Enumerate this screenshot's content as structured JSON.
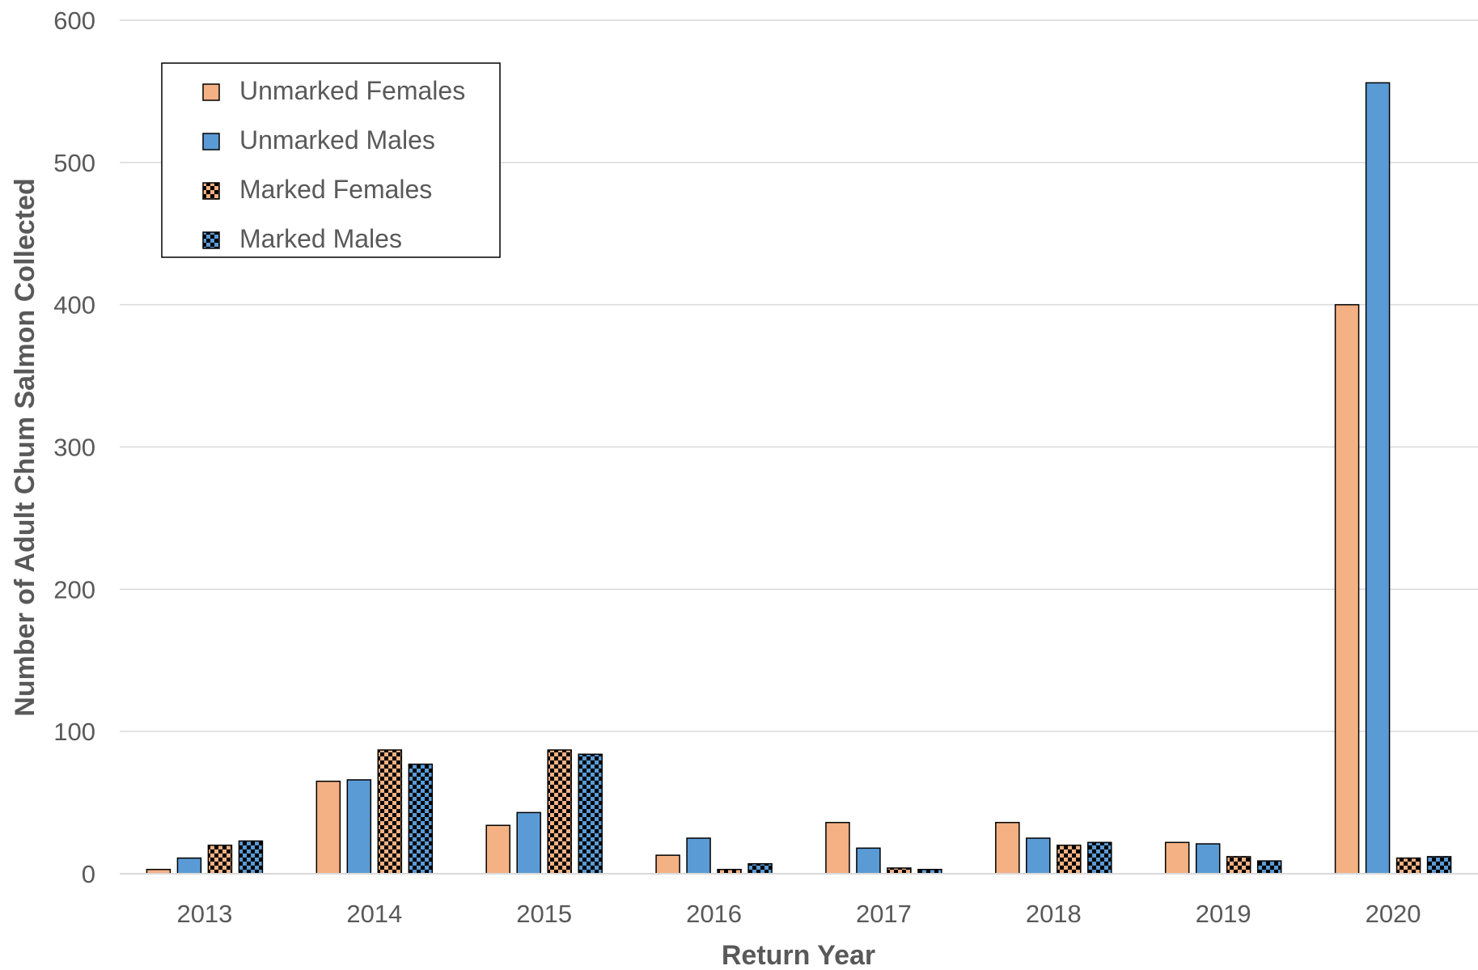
{
  "chart_data": {
    "type": "bar",
    "xlabel": "Return Year",
    "ylabel": "Number of Adult Chum Salmon Collected",
    "ylim": [
      0,
      600
    ],
    "yticks": [
      0,
      100,
      200,
      300,
      400,
      500,
      600
    ],
    "grid": true,
    "legend_position": "top-left",
    "categories": [
      "2013",
      "2014",
      "2015",
      "2016",
      "2017",
      "2018",
      "2019",
      "2020"
    ],
    "series": [
      {
        "name": "Unmarked Females",
        "color": "#F4B183",
        "pattern": "solid",
        "values": [
          3,
          65,
          34,
          13,
          36,
          36,
          22,
          400
        ]
      },
      {
        "name": "Unmarked Males",
        "color": "#5B9BD5",
        "pattern": "solid",
        "values": [
          11,
          66,
          43,
          25,
          18,
          25,
          21,
          556
        ]
      },
      {
        "name": "Marked Females",
        "color": "#F4B183",
        "pattern": "checker",
        "values": [
          20,
          87,
          87,
          3,
          4,
          20,
          12,
          11
        ]
      },
      {
        "name": "Marked Males",
        "color": "#5B9BD5",
        "pattern": "checker",
        "values": [
          23,
          77,
          84,
          7,
          3,
          22,
          9,
          12
        ]
      }
    ]
  }
}
